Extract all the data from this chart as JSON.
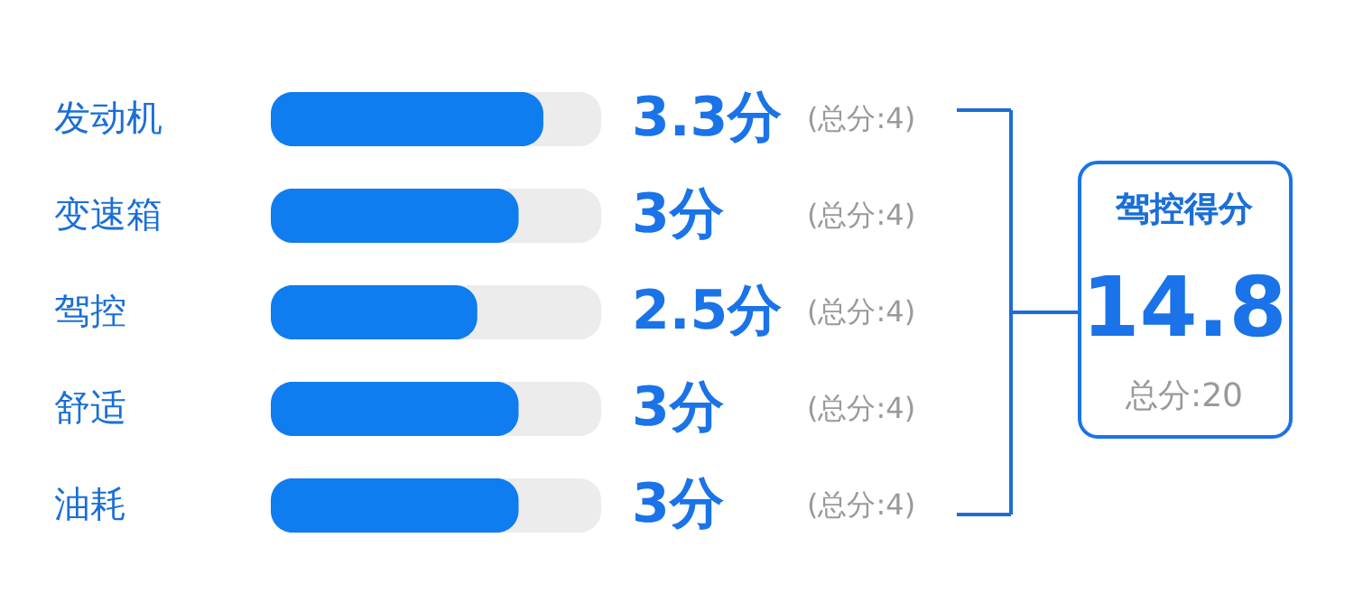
{
  "chart_data": {
    "type": "bar",
    "orientation": "horizontal",
    "categories": [
      "发动机",
      "变速箱",
      "驾控",
      "舒适",
      "油耗"
    ],
    "values": [
      3.3,
      3,
      2.5,
      3,
      3
    ],
    "value_labels": [
      "3.3分",
      "3分",
      "2.5分",
      "3分",
      "3分"
    ],
    "color": "#0f7cf0",
    "xlim": [
      0,
      4
    ],
    "annotations": [
      "(总分:4)",
      "(总分:4)",
      "(总分:4)",
      "(总分:4)",
      "(总分:4)",
      "驾控得分",
      "14.8",
      "总分:20"
    ]
  }
}
